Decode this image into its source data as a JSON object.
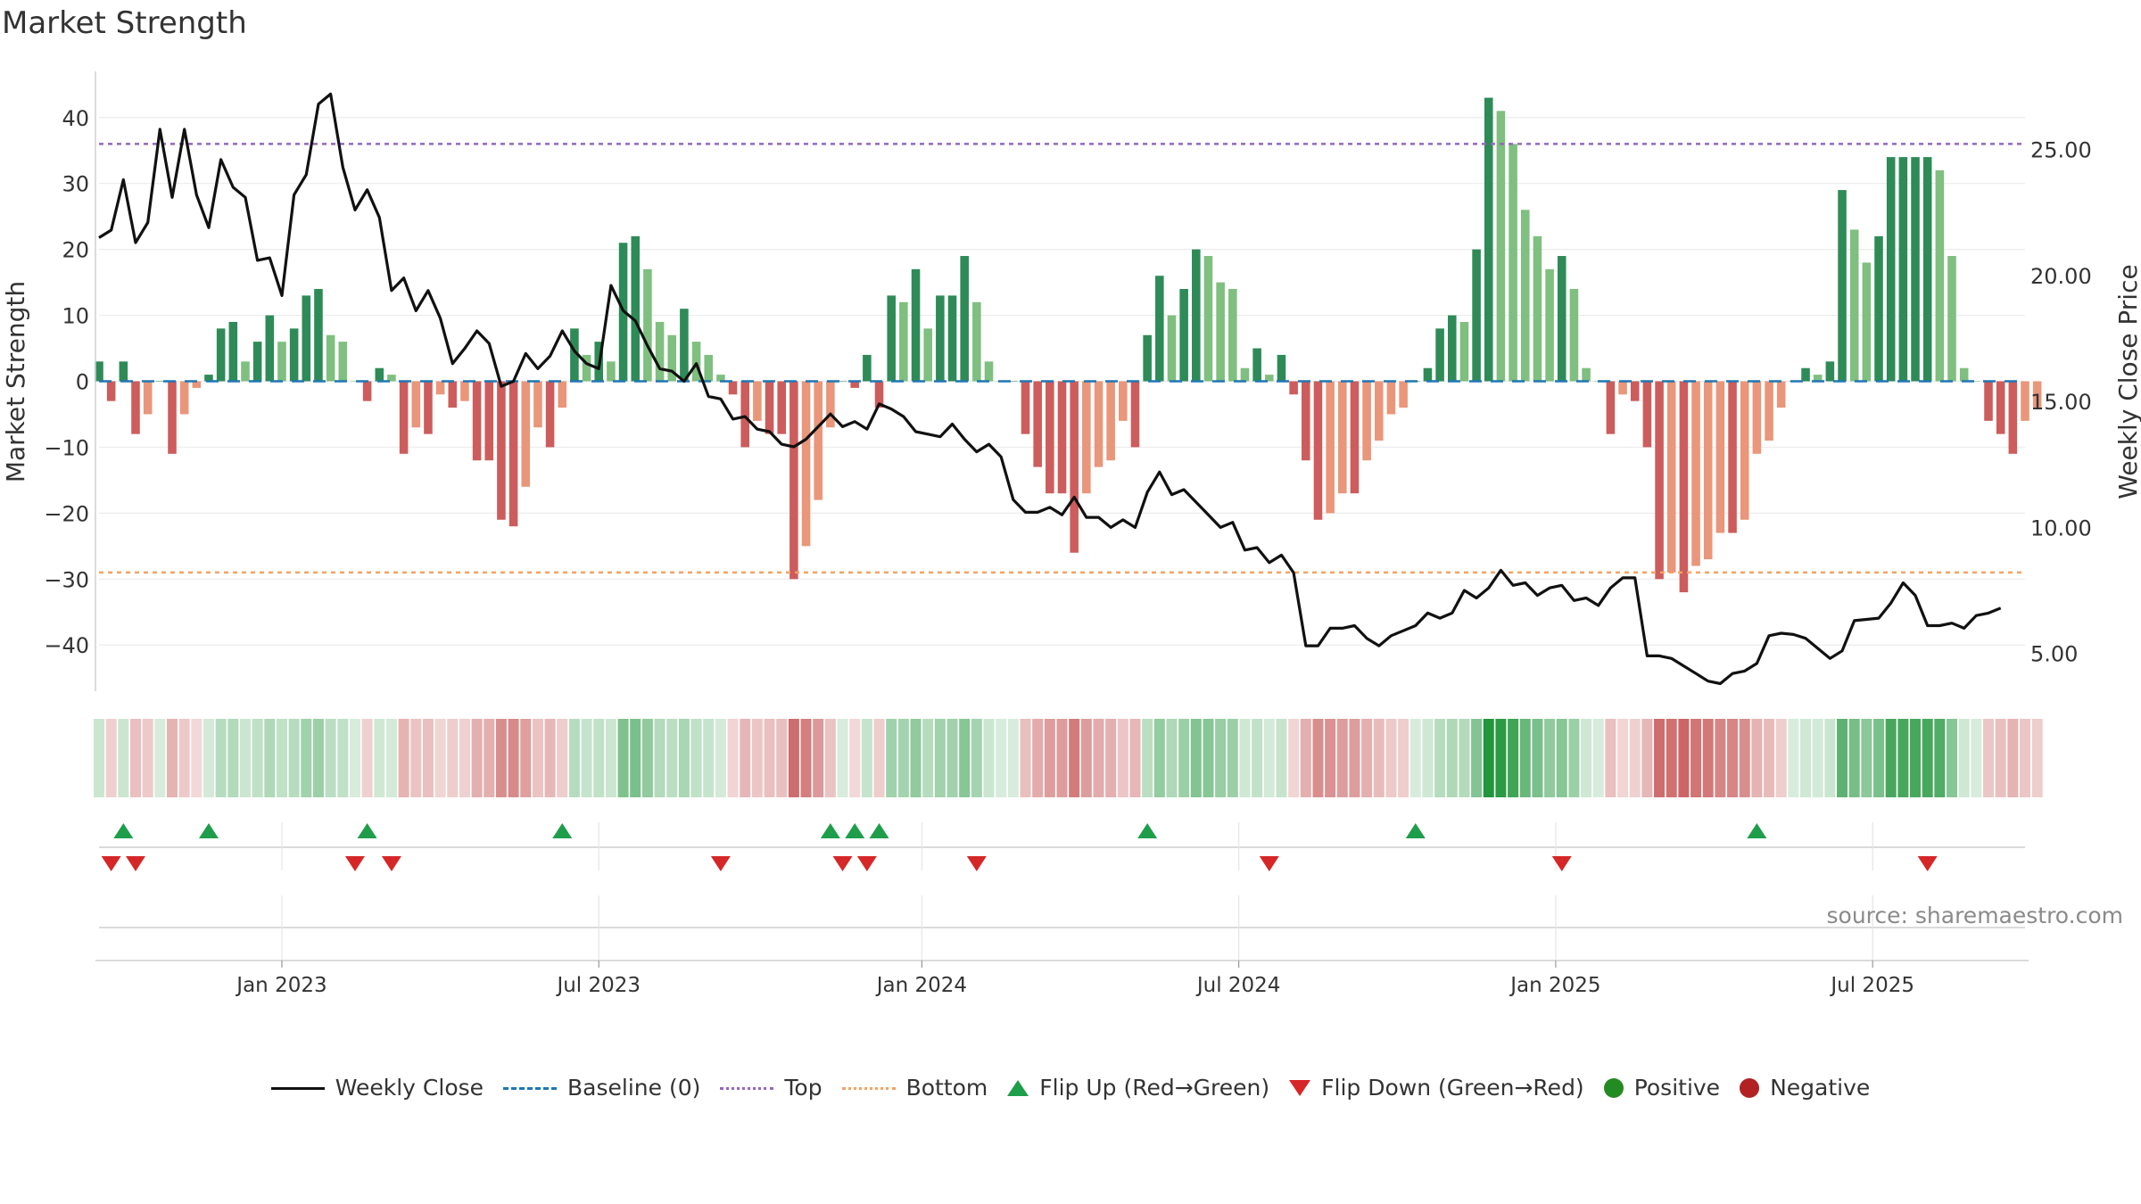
{
  "title": "Market Strength",
  "source": "source: sharemaestro.com",
  "colors": {
    "price_line": "#111111",
    "baseline": "#1f77b4",
    "top_line": "#9467bd",
    "bottom_line": "#f4a261",
    "pos_dark": "#2e8b57",
    "pos_light": "#7fbf7f",
    "neg_dark": "#cd5c5c",
    "neg_light": "#e9967a",
    "flip_up": "#1e9e4a",
    "flip_down": "#d62728",
    "positive_dot": "#228b22",
    "negative_dot": "#b22222"
  },
  "chart_data": {
    "type": "bar",
    "left_axis": {
      "label": "Market Strength",
      "ylim": [
        -47,
        47
      ],
      "ticks": [
        {
          "v": 40,
          "t": "40"
        },
        {
          "v": 30,
          "t": "30"
        },
        {
          "v": 20,
          "t": "20"
        },
        {
          "v": 10,
          "t": "10"
        },
        {
          "v": 0,
          "t": "0"
        },
        {
          "v": -10,
          "t": "−10"
        },
        {
          "v": -20,
          "t": "−20"
        },
        {
          "v": -30,
          "t": "−30"
        },
        {
          "v": -40,
          "t": "−40"
        }
      ]
    },
    "right_axis": {
      "label": "Weekly Close Price",
      "ylim": [
        3.5,
        28.1
      ],
      "ticks": [
        {
          "v": 25,
          "t": "25.00"
        },
        {
          "v": 20,
          "t": "20.00"
        },
        {
          "v": 15,
          "t": "15.00"
        },
        {
          "v": 10,
          "t": "10.00"
        },
        {
          "v": 5,
          "t": "5.00"
        }
      ]
    },
    "x_axis": {
      "range_weeks": [
        0,
        158
      ],
      "ticks": [
        {
          "w": 15,
          "t": "Jan 2023"
        },
        {
          "w": 41,
          "t": "Jul 2023"
        },
        {
          "w": 67.5,
          "t": "Jan 2024"
        },
        {
          "w": 93.5,
          "t": "Jul 2024"
        },
        {
          "w": 119.5,
          "t": "Jan 2025"
        },
        {
          "w": 145.5,
          "t": "Jul 2025"
        }
      ]
    },
    "top_level": 36,
    "bottom_level": -29,
    "strength": [
      3,
      -3,
      3,
      -8,
      -5,
      0,
      -11,
      -5,
      -1,
      1,
      8,
      9,
      3,
      6,
      10,
      6,
      8,
      13,
      14,
      7,
      6,
      0,
      -3,
      2,
      1,
      -11,
      -7,
      -8,
      -2,
      -4,
      -3,
      -12,
      -12,
      -21,
      -22,
      -16,
      -7,
      -10,
      -4,
      8,
      4,
      6,
      3,
      21,
      22,
      17,
      9,
      7,
      11,
      6,
      4,
      1,
      -2,
      -10,
      -6,
      -8,
      -8,
      -30,
      -25,
      -18,
      -7,
      0,
      -1,
      4,
      -4,
      13,
      12,
      17,
      8,
      13,
      13,
      19,
      12,
      3,
      0,
      0,
      -8,
      -13,
      -17,
      -17,
      -26,
      -17,
      -13,
      -12,
      -6,
      -10,
      7,
      16,
      10,
      14,
      20,
      19,
      15,
      14,
      2,
      5,
      1,
      4,
      -2,
      -12,
      -21,
      -20,
      -17,
      -17,
      -12,
      -9,
      -5,
      -4,
      0,
      2,
      8,
      10,
      9,
      20,
      43,
      41,
      36,
      26,
      22,
      17,
      19,
      14,
      2,
      0,
      -8,
      -2,
      -3,
      -10,
      -30,
      -29,
      -32,
      -28,
      -27,
      -23,
      -23,
      -21,
      -11,
      -9,
      -4,
      0,
      2,
      1,
      3,
      29,
      23,
      18,
      22,
      34,
      34,
      34,
      34,
      32,
      19,
      2,
      0,
      -6,
      -8,
      -11,
      -6,
      -4
    ],
    "price": [
      21.5,
      21.8,
      23.8,
      21.3,
      22.1,
      25.8,
      23.1,
      25.8,
      23.2,
      21.9,
      24.6,
      23.5,
      23.1,
      20.6,
      20.7,
      19.2,
      23.2,
      24,
      26.8,
      27.2,
      24.3,
      22.6,
      23.4,
      22.3,
      19.4,
      19.9,
      18.6,
      19.4,
      18.3,
      16.5,
      17.1,
      17.8,
      17.3,
      15.6,
      15.8,
      16.9,
      16.3,
      16.8,
      17.8,
      17,
      16.5,
      16.3,
      19.6,
      18.6,
      18.2,
      17.2,
      16.3,
      16.2,
      15.8,
      16.5,
      15.2,
      15.1,
      14.3,
      14.4,
      13.9,
      13.8,
      13.3,
      13.2,
      13.5,
      14,
      14.5,
      14,
      14.2,
      13.9,
      14.9,
      14.7,
      14.4,
      13.8,
      13.7,
      13.6,
      14.1,
      13.5,
      13,
      13.3,
      12.8,
      11.1,
      10.6,
      10.6,
      10.8,
      10.5,
      11.2,
      10.4,
      10.4,
      10,
      10.3,
      10,
      11.4,
      12.2,
      11.3,
      11.5,
      11,
      10.5,
      10,
      10.2,
      9.1,
      9.2,
      8.6,
      8.9,
      8.2,
      5.3,
      5.3,
      6,
      6,
      6.1,
      5.6,
      5.3,
      5.7,
      5.9,
      6.1,
      6.6,
      6.4,
      6.6,
      7.5,
      7.2,
      7.6,
      8.3,
      7.7,
      7.8,
      7.3,
      7.6,
      7.7,
      7.1,
      7.2,
      6.9,
      7.6,
      8,
      8,
      4.9,
      4.9,
      4.8,
      4.5,
      4.2,
      3.9,
      3.8,
      4.2,
      4.3,
      4.6,
      5.7,
      5.8,
      5.75,
      5.6,
      5.2,
      4.8,
      5.1,
      6.3,
      6.35,
      6.4,
      7,
      7.8,
      7.3,
      6.1,
      6.1,
      6.2,
      6,
      6.5,
      6.6,
      6.8
    ],
    "flips_up": [
      2,
      9,
      22,
      38,
      60,
      62,
      64,
      86,
      108,
      136
    ],
    "flips_down": [
      1,
      3,
      21,
      24,
      51,
      61,
      63,
      72,
      96,
      120,
      150
    ]
  },
  "legend": [
    {
      "key": "weekly_close",
      "label": "Weekly Close"
    },
    {
      "key": "baseline",
      "label": "Baseline (0)"
    },
    {
      "key": "top",
      "label": "Top"
    },
    {
      "key": "bottom",
      "label": "Bottom"
    },
    {
      "key": "flip_up",
      "label": "Flip Up (Red→Green)"
    },
    {
      "key": "flip_down",
      "label": "Flip Down (Green→Red)"
    },
    {
      "key": "positive",
      "label": "Positive"
    },
    {
      "key": "negative",
      "label": "Negative"
    }
  ]
}
